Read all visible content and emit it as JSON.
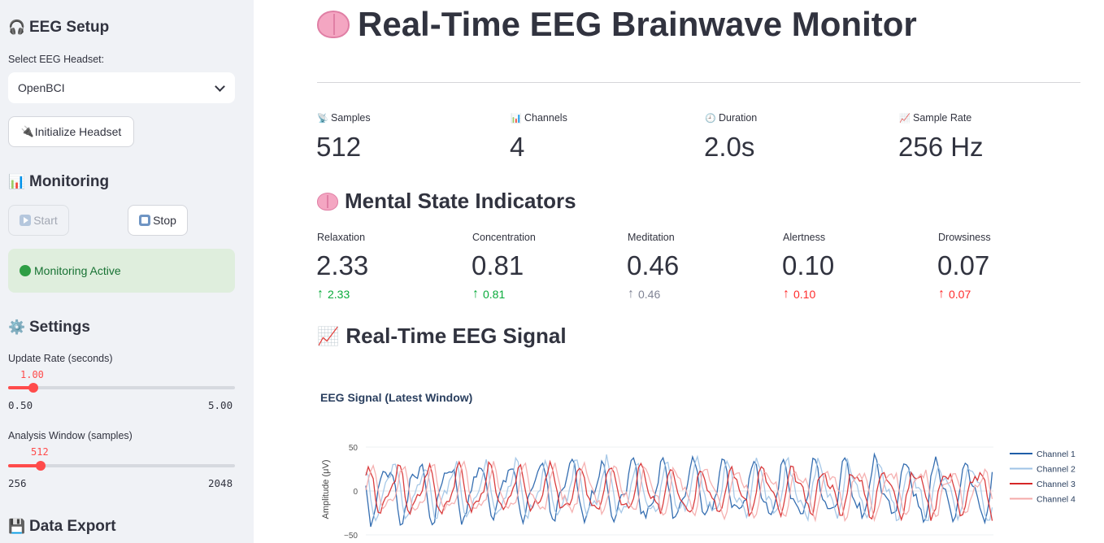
{
  "sidebar": {
    "setup_heading": "EEG Setup",
    "headset_label": "Select EEG Headset:",
    "headset_value": "OpenBCI",
    "init_button": "Initialize Headset",
    "monitoring_heading": "Monitoring",
    "start_button": "Start",
    "stop_button": "Stop",
    "status": "Monitoring Active",
    "settings_heading": "Settings",
    "update_rate": {
      "label": "Update Rate (seconds)",
      "value": "1.00",
      "min": "0.50",
      "max": "5.00",
      "fraction": 0.111
    },
    "analysis_window": {
      "label": "Analysis Window (samples)",
      "value": "512",
      "min": "256",
      "max": "2048",
      "fraction": 0.143
    },
    "export_heading": "Data Export"
  },
  "main": {
    "title": "Real-Time EEG Brainwave Monitor",
    "metrics": [
      {
        "label": "Samples",
        "value": "512"
      },
      {
        "label": "Channels",
        "value": "4"
      },
      {
        "label": "Duration",
        "value": "2.0s"
      },
      {
        "label": "Sample Rate",
        "value": "256 Hz"
      }
    ],
    "mental_heading": "Mental State Indicators",
    "indicators": [
      {
        "label": "Relaxation",
        "value": "2.33",
        "delta": "2.33",
        "color": "#09ab3b"
      },
      {
        "label": "Concentration",
        "value": "0.81",
        "delta": "0.81",
        "color": "#09ab3b"
      },
      {
        "label": "Meditation",
        "value": "0.46",
        "delta": "0.46",
        "color": "#808495"
      },
      {
        "label": "Alertness",
        "value": "0.10",
        "delta": "0.10",
        "color": "#ff2b2b"
      },
      {
        "label": "Drowsiness",
        "value": "0.07",
        "delta": "0.07",
        "color": "#ff2b2b"
      }
    ],
    "signal_heading": "Real-Time EEG Signal"
  },
  "chart_data": {
    "type": "line",
    "title": "EEG Signal (Latest Window)",
    "ylabel": "Amplitude (μV)",
    "ylim": [
      -50,
      50
    ],
    "yticks": [
      "50",
      "0",
      "−50"
    ],
    "xlim": [
      0,
      512
    ],
    "legend": "right",
    "series": [
      {
        "name": "Channel 1",
        "color": "#1f5ea8",
        "seed": 1,
        "amp": 38
      },
      {
        "name": "Channel 2",
        "color": "#9ec3e6",
        "seed": 2,
        "amp": 36
      },
      {
        "name": "Channel 3",
        "color": "#d62728",
        "seed": 3,
        "amp": 30
      },
      {
        "name": "Channel 4",
        "color": "#f4a9a8",
        "seed": 4,
        "amp": 30
      }
    ]
  }
}
